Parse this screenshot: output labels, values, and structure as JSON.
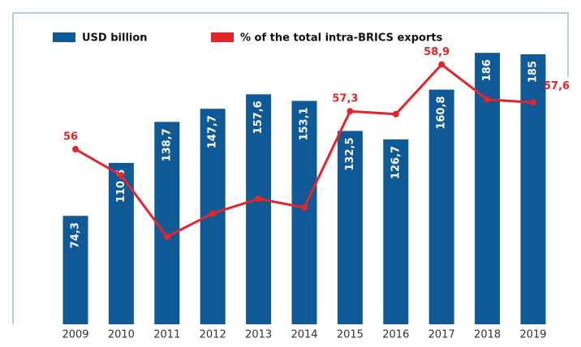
{
  "chart_data": {
    "type": "bar",
    "categories": [
      "2009",
      "2010",
      "2011",
      "2012",
      "2013",
      "2014",
      "2015",
      "2016",
      "2017",
      "2018",
      "2019"
    ],
    "ylim": [
      0,
      200
    ],
    "y2lim": [
      50,
      60
    ],
    "series": [
      {
        "name": "USD billion",
        "color": "#0f5996",
        "type": "bar",
        "values": [
          74.3,
          110.6,
          138.7,
          147.7,
          157.6,
          153.1,
          132.5,
          126.7,
          160.8,
          186,
          185
        ],
        "value_labels": [
          "74,3",
          "110,6",
          "138,7",
          "147,7",
          "157,6",
          "153,1",
          "132,5",
          "126,7",
          "160,8",
          "186",
          "185"
        ]
      },
      {
        "name": "% of the total intra-BRICS exports",
        "color": "#e3262b",
        "type": "line",
        "axis": "y2",
        "values": [
          56,
          55.1,
          53,
          53.8,
          54.3,
          54,
          57.3,
          57.2,
          58.9,
          57.7,
          57.6
        ],
        "value_labels": [
          "56",
          null,
          null,
          null,
          null,
          null,
          "57,3",
          null,
          "58,9",
          null,
          "57,6"
        ]
      }
    ]
  }
}
